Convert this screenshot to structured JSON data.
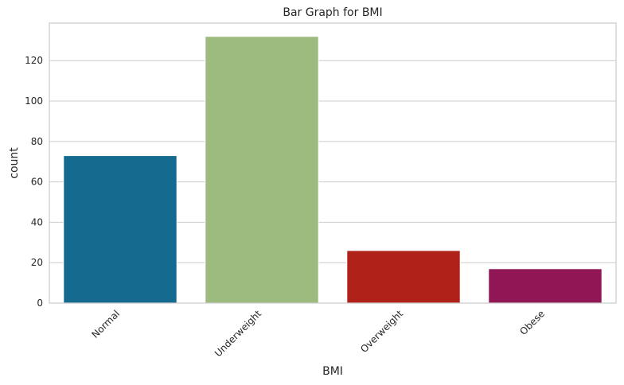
{
  "chart_data": {
    "type": "bar",
    "title": "Bar Graph for BMI",
    "xlabel": "BMI",
    "ylabel": "count",
    "categories": [
      "Normal",
      "Underweight",
      "Overweight",
      "Obese"
    ],
    "values": [
      73,
      132,
      26,
      17
    ],
    "colors": [
      "#156a8f",
      "#9dba7f",
      "#b02119",
      "#901656"
    ],
    "yticks": [
      0,
      20,
      40,
      60,
      80,
      100,
      120
    ],
    "ylim": [
      0,
      138.6
    ],
    "grid": true
  }
}
